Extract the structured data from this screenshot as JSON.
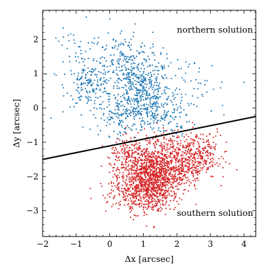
{
  "chart_data": {
    "type": "scatter",
    "title": "",
    "xlabel": "Δx [arcsec]",
    "ylabel": "Δy [arcsec]",
    "xlim": [
      -2.0,
      4.35
    ],
    "ylim": [
      -3.75,
      2.85
    ],
    "x_ticks": [
      -2,
      -1,
      0,
      1,
      2,
      3,
      4
    ],
    "y_ticks": [
      -3,
      -2,
      -1,
      0,
      1,
      2
    ],
    "grid": false,
    "tick_direction": "in",
    "series": [
      {
        "color": "#1f77b4",
        "clusters": [
          {
            "cx": 0.9,
            "cy": 0.45,
            "sx": 0.45,
            "sy": 0.5,
            "n": 430
          },
          {
            "cx": -0.6,
            "cy": 0.65,
            "sx": 0.35,
            "sy": 0.3,
            "n": 160
          },
          {
            "cx": 0.4,
            "cy": 1.4,
            "sx": 0.55,
            "sy": 0.45,
            "n": 180
          },
          {
            "cx": 1.5,
            "cy": -0.2,
            "sx": 0.45,
            "sy": 0.3,
            "n": 140
          },
          {
            "cx": 0.2,
            "cy": -0.3,
            "sx": 0.35,
            "sy": 0.25,
            "n": 90
          },
          {
            "cx": 2.4,
            "cy": 0.6,
            "sx": 0.55,
            "sy": 0.45,
            "n": 60
          },
          {
            "cx": -0.9,
            "cy": 1.6,
            "sx": 0.35,
            "sy": 0.35,
            "n": 40
          }
        ],
        "outliers": [
          [
            0.0,
            2.6
          ],
          [
            -0.7,
            2.65
          ],
          [
            4.0,
            0.75
          ],
          [
            -1.75,
            -0.3
          ],
          [
            3.4,
            -0.2
          ],
          [
            0.3,
            -0.7
          ]
        ]
      },
      {
        "color": "#d62728",
        "clusters": [
          {
            "cx": 1.3,
            "cy": -1.95,
            "sx": 0.45,
            "sy": 0.4,
            "n": 1000
          },
          {
            "cx": 2.3,
            "cy": -1.5,
            "sx": 0.45,
            "sy": 0.3,
            "n": 400
          },
          {
            "cx": 1.1,
            "cy": -2.55,
            "sx": 0.35,
            "sy": 0.3,
            "n": 250
          },
          {
            "cx": 0.6,
            "cy": -1.4,
            "sx": 0.3,
            "sy": 0.25,
            "n": 160
          },
          {
            "cx": 2.8,
            "cy": -1.1,
            "sx": 0.3,
            "sy": 0.25,
            "n": 70
          },
          {
            "cx": 0.4,
            "cy": -2.3,
            "sx": 0.35,
            "sy": 0.3,
            "n": 100
          },
          {
            "cx": 1.6,
            "cy": -1.0,
            "sx": 0.35,
            "sy": 0.2,
            "n": 60
          }
        ],
        "outliers": [
          [
            1.1,
            -3.45
          ],
          [
            -0.25,
            -1.7
          ],
          [
            3.3,
            -0.8
          ],
          [
            0.05,
            -2.2
          ]
        ]
      }
    ],
    "divider_line": {
      "color": "#000000",
      "points": [
        [
          -2.0,
          -1.5
        ],
        [
          4.35,
          -0.25
        ]
      ]
    },
    "annotations": [
      {
        "text": "northern solution",
        "x": 2.0,
        "y": 2.2,
        "anchor": "start"
      },
      {
        "text": "southern solution",
        "x": 2.0,
        "y": -3.15,
        "anchor": "start"
      }
    ]
  }
}
